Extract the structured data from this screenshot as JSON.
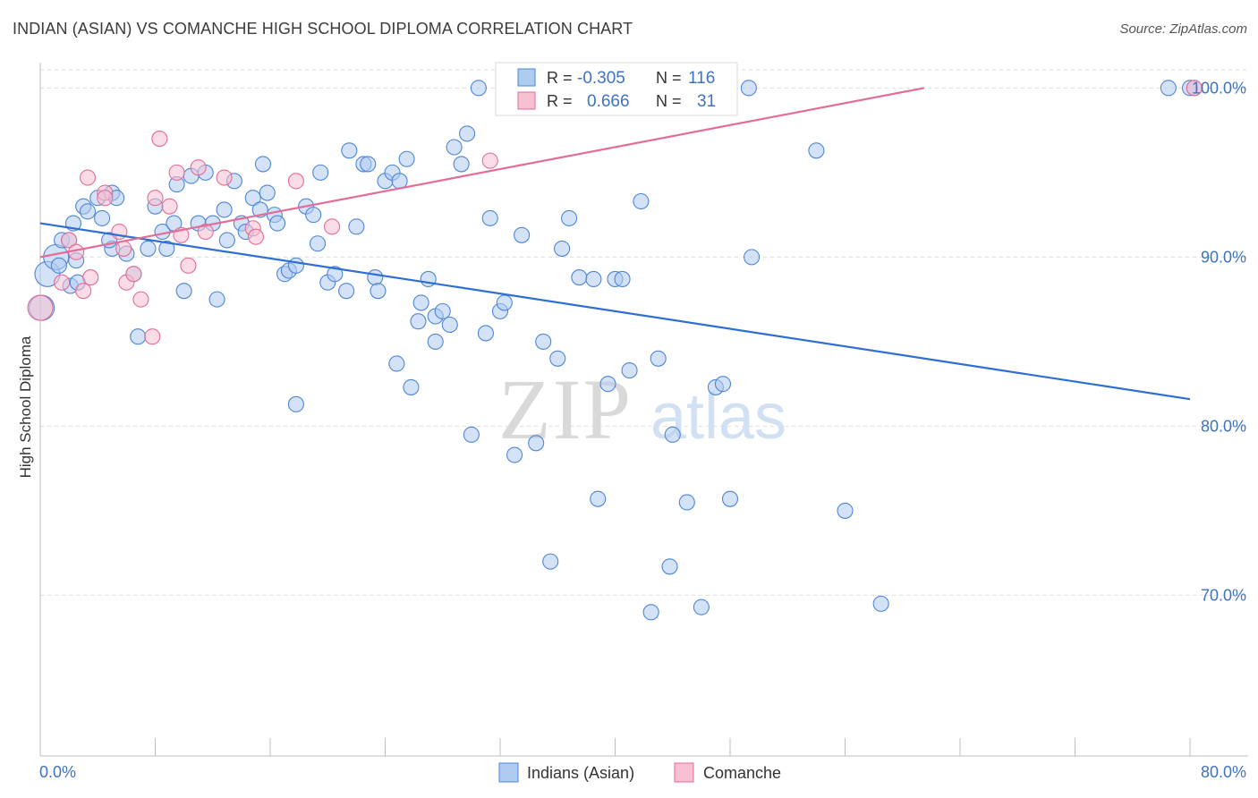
{
  "title": "INDIAN (ASIAN) VS COMANCHE HIGH SCHOOL DIPLOMA CORRELATION CHART",
  "source": "Source: ZipAtlas.com",
  "watermark": {
    "zip": "ZIP",
    "atlas": "atlas"
  },
  "colors": {
    "blue": "#4f86d4",
    "blue_fill": "#aecbf0",
    "pink": "#e26d97",
    "pink_fill": "#f7bfd2",
    "axis_label": "#3d73c4",
    "grid": "#dedede"
  },
  "stats_legend": [
    {
      "r_label": "R =",
      "r_value": "-0.305",
      "n_label": "N =",
      "n_value": "116",
      "series": "Indians (Asian)"
    },
    {
      "r_label": "R =",
      "r_value": "0.666",
      "n_label": "N =",
      "n_value": "31",
      "series": "Comanche"
    }
  ],
  "chart_data": {
    "type": "scatter",
    "title": "INDIAN (ASIAN) VS COMANCHE HIGH SCHOOL DIPLOMA CORRELATION CHART",
    "xlabel": "",
    "ylabel": "High School Diploma",
    "xlim": [
      0,
      80
    ],
    "ylim": [
      60.5,
      101.5
    ],
    "x_tick_labels": [
      "0.0%",
      "80.0%"
    ],
    "y_ticks": [
      70,
      80,
      90,
      100
    ],
    "y_tick_labels": [
      "70.0%",
      "80.0%",
      "90.0%",
      "100.0%"
    ],
    "grid": true,
    "legend_position": "bottom-center",
    "series": [
      {
        "name": "Indians (Asian)",
        "color": "#4f86d4",
        "trend": {
          "x": [
            0,
            80
          ],
          "y": [
            92.0,
            81.6
          ]
        },
        "points": [
          [
            0.1,
            87.0
          ],
          [
            0.5,
            89.0
          ],
          [
            1.1,
            90.0
          ],
          [
            1.3,
            89.5
          ],
          [
            1.5,
            91.0
          ],
          [
            2.0,
            91.0
          ],
          [
            2.1,
            88.3
          ],
          [
            2.3,
            92.0
          ],
          [
            2.5,
            89.8
          ],
          [
            2.6,
            88.5
          ],
          [
            3.0,
            93.0
          ],
          [
            3.3,
            92.7
          ],
          [
            4.0,
            93.5
          ],
          [
            4.3,
            92.3
          ],
          [
            5.0,
            93.8
          ],
          [
            5.3,
            93.5
          ],
          [
            5.0,
            90.5
          ],
          [
            4.8,
            91.0
          ],
          [
            6.0,
            90.2
          ],
          [
            6.5,
            89.0
          ],
          [
            6.8,
            85.3
          ],
          [
            7.5,
            90.5
          ],
          [
            8.0,
            93.0
          ],
          [
            8.5,
            91.5
          ],
          [
            8.8,
            90.5
          ],
          [
            9.3,
            92.0
          ],
          [
            9.5,
            94.3
          ],
          [
            10.0,
            88.0
          ],
          [
            10.5,
            94.8
          ],
          [
            11.0,
            92.0
          ],
          [
            11.5,
            95.0
          ],
          [
            12.0,
            92.0
          ],
          [
            12.3,
            87.5
          ],
          [
            12.8,
            92.8
          ],
          [
            13.0,
            91.0
          ],
          [
            13.5,
            94.5
          ],
          [
            14.0,
            92.0
          ],
          [
            14.3,
            91.5
          ],
          [
            14.8,
            93.5
          ],
          [
            15.3,
            92.8
          ],
          [
            15.5,
            95.5
          ],
          [
            15.8,
            93.8
          ],
          [
            16.3,
            92.5
          ],
          [
            16.5,
            92.0
          ],
          [
            17.0,
            89.0
          ],
          [
            17.3,
            89.2
          ],
          [
            17.8,
            89.5
          ],
          [
            17.8,
            81.3
          ],
          [
            18.5,
            93.0
          ],
          [
            19.0,
            92.5
          ],
          [
            19.3,
            90.8
          ],
          [
            19.5,
            95.0
          ],
          [
            20.0,
            88.5
          ],
          [
            20.5,
            89.0
          ],
          [
            21.3,
            88.0
          ],
          [
            21.5,
            96.3
          ],
          [
            22.0,
            91.8
          ],
          [
            22.5,
            95.5
          ],
          [
            22.8,
            95.5
          ],
          [
            23.3,
            88.8
          ],
          [
            23.5,
            88.0
          ],
          [
            24.0,
            94.5
          ],
          [
            24.5,
            95.0
          ],
          [
            25.0,
            94.5
          ],
          [
            25.5,
            95.8
          ],
          [
            24.8,
            83.7
          ],
          [
            25.8,
            82.3
          ],
          [
            26.5,
            87.3
          ],
          [
            26.3,
            86.2
          ],
          [
            27.0,
            88.7
          ],
          [
            27.5,
            86.5
          ],
          [
            27.5,
            85.0
          ],
          [
            28.0,
            86.8
          ],
          [
            28.5,
            86.0
          ],
          [
            28.8,
            96.5
          ],
          [
            29.3,
            95.5
          ],
          [
            29.7,
            97.3
          ],
          [
            30.0,
            79.5
          ],
          [
            30.5,
            100.0
          ],
          [
            31.0,
            85.5
          ],
          [
            31.3,
            92.3
          ],
          [
            32.0,
            86.8
          ],
          [
            32.3,
            87.3
          ],
          [
            33.0,
            78.3
          ],
          [
            33.5,
            91.3
          ],
          [
            34.5,
            79.0
          ],
          [
            35.5,
            72.0
          ],
          [
            35.0,
            85.0
          ],
          [
            36.0,
            84.0
          ],
          [
            36.3,
            90.5
          ],
          [
            36.8,
            92.3
          ],
          [
            37.5,
            88.8
          ],
          [
            38.5,
            88.7
          ],
          [
            38.8,
            75.7
          ],
          [
            39.5,
            82.5
          ],
          [
            40.0,
            88.7
          ],
          [
            40.5,
            88.7
          ],
          [
            41.0,
            83.3
          ],
          [
            41.8,
            93.3
          ],
          [
            42.5,
            69.0
          ],
          [
            43.0,
            84.0
          ],
          [
            43.8,
            71.7
          ],
          [
            44.0,
            79.5
          ],
          [
            45.0,
            75.5
          ],
          [
            46.0,
            69.3
          ],
          [
            47.0,
            82.3
          ],
          [
            47.5,
            82.5
          ],
          [
            48.0,
            75.7
          ],
          [
            49.3,
            100.0
          ],
          [
            49.5,
            90.0
          ],
          [
            54.0,
            96.3
          ],
          [
            56.0,
            75.0
          ],
          [
            58.5,
            69.5
          ],
          [
            78.5,
            100.0
          ],
          [
            80.0,
            100.0
          ],
          [
            80.3,
            100.0
          ]
        ]
      },
      {
        "name": "Comanche",
        "color": "#e26d97",
        "trend": {
          "x": [
            0,
            61.5
          ],
          "y": [
            90.0,
            100.0
          ]
        },
        "points": [
          [
            0.0,
            87.0
          ],
          [
            1.5,
            88.5
          ],
          [
            2.0,
            91.0
          ],
          [
            2.5,
            90.3
          ],
          [
            3.0,
            88.0
          ],
          [
            3.3,
            94.7
          ],
          [
            3.5,
            88.8
          ],
          [
            4.5,
            93.8
          ],
          [
            4.5,
            93.5
          ],
          [
            5.5,
            91.5
          ],
          [
            5.8,
            90.5
          ],
          [
            6.0,
            88.5
          ],
          [
            6.5,
            89.0
          ],
          [
            7.0,
            87.5
          ],
          [
            7.8,
            85.3
          ],
          [
            8.0,
            93.5
          ],
          [
            8.3,
            97.0
          ],
          [
            9.0,
            93.0
          ],
          [
            9.5,
            95.0
          ],
          [
            9.8,
            91.3
          ],
          [
            10.3,
            89.5
          ],
          [
            11.0,
            95.3
          ],
          [
            11.5,
            91.5
          ],
          [
            12.8,
            94.7
          ],
          [
            14.8,
            91.7
          ],
          [
            15.0,
            91.2
          ],
          [
            17.8,
            94.5
          ],
          [
            20.3,
            91.8
          ],
          [
            31.3,
            95.7
          ],
          [
            33.0,
            100.0
          ],
          [
            80.3,
            100.0
          ]
        ]
      }
    ]
  },
  "bottom_legend": [
    {
      "label": "Indians (Asian)"
    },
    {
      "label": "Comanche"
    }
  ]
}
